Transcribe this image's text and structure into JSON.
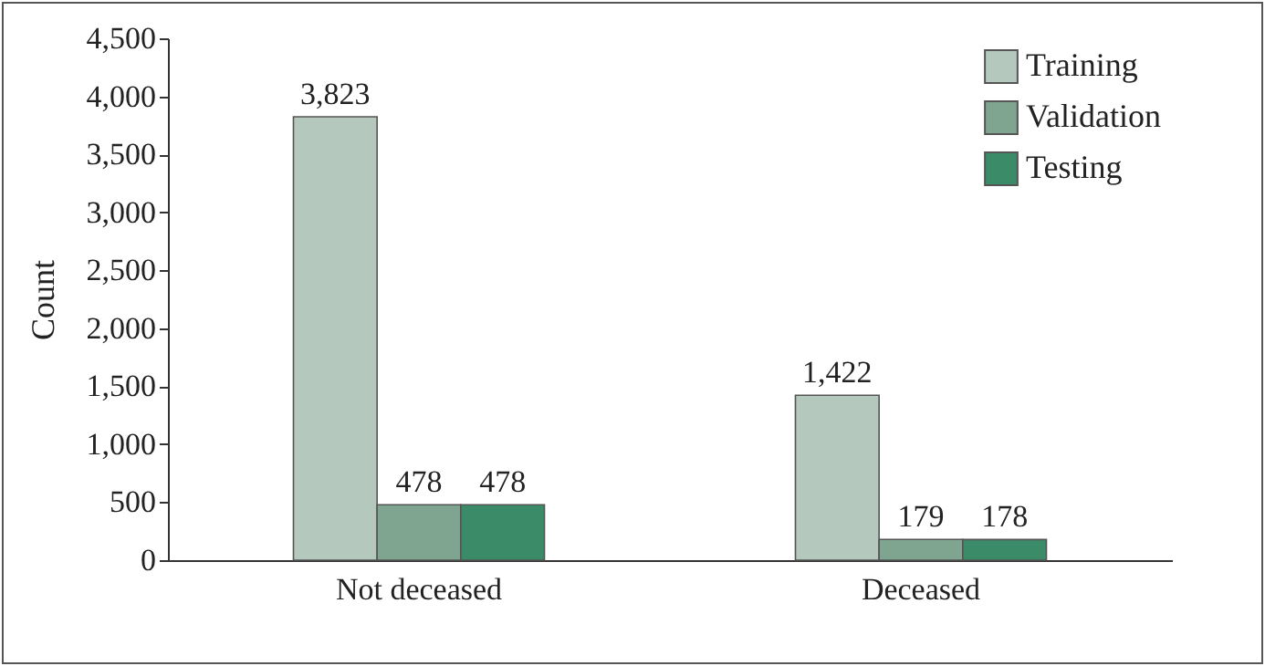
{
  "chart_data": {
    "type": "bar",
    "ylabel": "Count",
    "categories": [
      "Not deceased",
      "Deceased"
    ],
    "series": [
      {
        "name": "Training",
        "color": "#b5c8bd",
        "values": [
          3823,
          1422
        ],
        "value_labels": [
          "3,823",
          "1,422"
        ]
      },
      {
        "name": "Validation",
        "color": "#7fa48f",
        "values": [
          478,
          179
        ],
        "value_labels": [
          "478",
          "179"
        ]
      },
      {
        "name": "Testing",
        "color": "#3b8a68",
        "values": [
          478,
          178
        ],
        "value_labels": [
          "478",
          "178"
        ]
      }
    ],
    "ylim": [
      0,
      4500
    ],
    "yticks": [
      0,
      500,
      {
        "value": 1000,
        "label": "1,000"
      },
      {
        "value": 1500,
        "label": "1,500"
      },
      {
        "value": 2000,
        "label": "2,000"
      },
      {
        "value": 2500,
        "label": "2,500"
      },
      {
        "value": 3000,
        "label": "3,000"
      },
      {
        "value": 3500,
        "label": "3,500"
      },
      {
        "value": 4000,
        "label": "4,000"
      },
      {
        "value": 4500,
        "label": "4,500"
      }
    ],
    "legend": "top right",
    "grid": false
  }
}
